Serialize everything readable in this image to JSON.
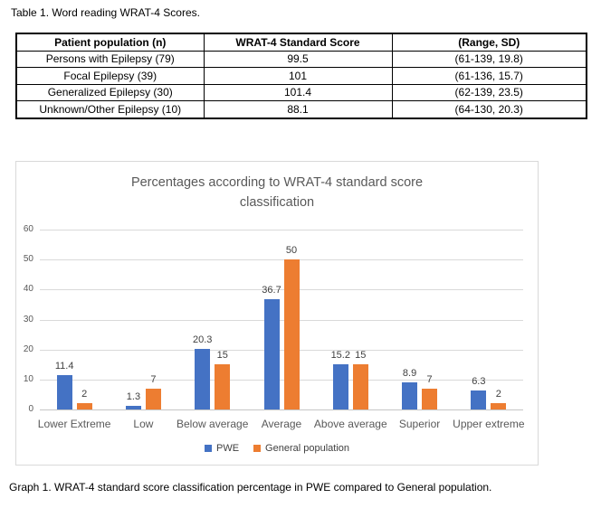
{
  "table_caption": "Table 1. Word reading WRAT-4 Scores.",
  "table": {
    "headers": [
      "Patient population (n)",
      "WRAT-4 Standard Score",
      "(Range, SD)"
    ],
    "rows": [
      [
        "Persons with Epilepsy (79)",
        "99.5",
        "(61-139, 19.8)"
      ],
      [
        "Focal Epilepsy (39)",
        "101",
        "(61-136, 15.7)"
      ],
      [
        "Generalized Epilepsy (30)",
        "101.4",
        "(62-139, 23.5)"
      ],
      [
        "Unknown/Other Epilepsy (10)",
        "88.1",
        "(64-130, 20.3)"
      ]
    ]
  },
  "chart_data": {
    "type": "bar",
    "title": "Percentages according to WRAT-4 standard score classification",
    "categories": [
      "Lower Extreme",
      "Low",
      "Below average",
      "Average",
      "Above average",
      "Superior",
      "Upper extreme"
    ],
    "series": [
      {
        "name": "PWE",
        "color": "#4472C4",
        "values": [
          11.4,
          1.3,
          20.3,
          36.7,
          15.2,
          8.9,
          6.3
        ]
      },
      {
        "name": "General population",
        "color": "#ED7D31",
        "values": [
          2,
          7,
          15,
          50,
          15,
          7,
          2
        ]
      }
    ],
    "xlabel": "",
    "ylabel": "",
    "ylim": [
      0,
      60
    ],
    "yticks": [
      0,
      10,
      20,
      30,
      40,
      50,
      60
    ],
    "grid": true,
    "legend_position": "bottom"
  },
  "graph_caption": "Graph 1. WRAT-4 standard score classification percentage in PWE compared to General population.",
  "colors": {
    "gridline": "#D9D9D9",
    "chart_border": "#D9D9D9",
    "chart_text": "#595959",
    "data_label": "#404040",
    "table_border": "#000000"
  }
}
